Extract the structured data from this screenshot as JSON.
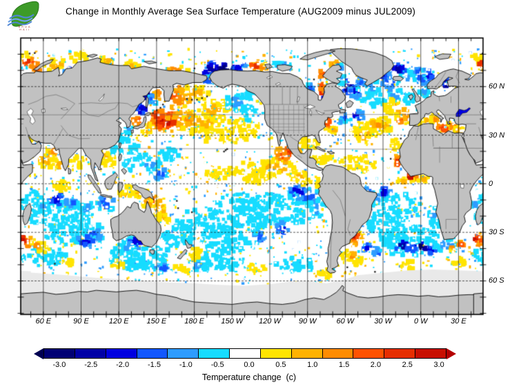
{
  "header": {
    "title": "Change in Monthly Average Sea Surface Temperature (AUG2009 minus JUL2009)",
    "logo_caption_line1": "BRUA",
    "logo_caption_line2": "HAII"
  },
  "axes": {
    "lon_labels": [
      {
        "label": "60 E",
        "lon": 60
      },
      {
        "label": "90 E",
        "lon": 90
      },
      {
        "label": "120 E",
        "lon": 120
      },
      {
        "label": "150 E",
        "lon": 150
      },
      {
        "label": "180 E",
        "lon": 180
      },
      {
        "label": "150 W",
        "lon": 210
      },
      {
        "label": "120 W",
        "lon": 240
      },
      {
        "label": "90 W",
        "lon": 270
      },
      {
        "label": "60 W",
        "lon": 300
      },
      {
        "label": "30 W",
        "lon": 330
      },
      {
        "label": "0 W",
        "lon": 360
      },
      {
        "label": "30 E",
        "lon": 390
      }
    ],
    "lat_labels": [
      {
        "label": "60 N",
        "lat": 60
      },
      {
        "label": "30 N",
        "lat": 30
      },
      {
        "label": "0",
        "lat": 0
      },
      {
        "label": "30 S",
        "lat": -30
      },
      {
        "label": "60 S",
        "lat": -60
      }
    ]
  },
  "colorbar": {
    "title": "Temperature change  (c)",
    "tick_labels": [
      "-3.0",
      "-2.5",
      "-2.0",
      "-1.5",
      "-1.0",
      "-0.5",
      "0.0",
      "0.5",
      "1.0",
      "1.5",
      "2.0",
      "2.5",
      "3.0"
    ],
    "segment_colors": [
      "#000074",
      "#0000a6",
      "#0000e0",
      "#1257ff",
      "#2e9cff",
      "#17dcff",
      "#ffffff",
      "#ffe400",
      "#ffb200",
      "#ff8c00",
      "#ff5200",
      "#e62e00",
      "#c80f00"
    ],
    "left_arrow_color": "#000052",
    "right_arrow_color": "#b40000"
  },
  "map_colors": {
    "land": "#c1c1c1",
    "coast": "#000000",
    "country_border": "#5f5f5f",
    "state_border": "#6f6f6f",
    "ice": "#e9e9e9",
    "ocean": "#ffffff",
    "grid": "#111111",
    "lake": "#ffffff",
    "black_sea_fill": "#0000e0"
  },
  "chart_data": {
    "type": "heatmap",
    "title": "Change in Monthly Average Sea Surface Temperature (AUG2009 minus JUL2009)",
    "units": "c",
    "colorbar_label": "Temperature change  (c)",
    "levels": [
      -3,
      -2.5,
      -2,
      -1.5,
      -1,
      -0.5,
      0,
      0.5,
      1,
      1.5,
      2,
      2.5,
      3
    ],
    "palette": [
      "#000074",
      "#0000a6",
      "#0000e0",
      "#1257ff",
      "#2e9cff",
      "#17dcff",
      "#ffffff",
      "#ffe400",
      "#ffb200",
      "#ff8c00",
      "#ff5200",
      "#e62e00",
      "#c80f00"
    ],
    "lon_range": [
      42,
      409.5
    ],
    "lat_range": [
      -80.7,
      90
    ],
    "grid_step_deg": 30,
    "anomaly_regions": [
      [
        158,
        38,
        16,
        6,
        2
      ],
      [
        157,
        38,
        9,
        4,
        3
      ],
      [
        150,
        42,
        6,
        3,
        2.5
      ],
      [
        172,
        40,
        12,
        6,
        1.5
      ],
      [
        186,
        38,
        18,
        8,
        1
      ],
      [
        205,
        33,
        26,
        9,
        0.5
      ],
      [
        196,
        46,
        14,
        6,
        1
      ],
      [
        170,
        52,
        10,
        5,
        1.5
      ],
      [
        181,
        56,
        12,
        5,
        1
      ],
      [
        167,
        60,
        8,
        4,
        1.5
      ],
      [
        165,
        54,
        5,
        4,
        2
      ],
      [
        152,
        55,
        5,
        4,
        1.5
      ],
      [
        160,
        44,
        8,
        4,
        2
      ],
      [
        143,
        34,
        5,
        4,
        1
      ],
      [
        134,
        39,
        4,
        2.5,
        2
      ],
      [
        215,
        50,
        10,
        6,
        -1
      ],
      [
        221,
        55,
        6,
        4,
        -0.5
      ],
      [
        192,
        71,
        10,
        4,
        -2.5
      ],
      [
        205,
        71,
        8,
        3,
        -3
      ],
      [
        215,
        72,
        6,
        3,
        -2
      ],
      [
        190,
        64,
        4,
        3,
        -1.5
      ],
      [
        142,
        56,
        5,
        4,
        -2.5
      ],
      [
        147,
        52,
        4,
        3,
        -1.5
      ],
      [
        138,
        46,
        4,
        3,
        -2.5
      ],
      [
        125,
        28,
        5,
        4,
        -0.5
      ],
      [
        128,
        33,
        4,
        3,
        -1
      ],
      [
        135,
        20,
        8,
        5,
        -0.5
      ],
      [
        145,
        12,
        10,
        5,
        -1
      ],
      [
        152,
        6,
        8,
        4,
        -1.5
      ],
      [
        160,
        18,
        8,
        4,
        -0.5
      ],
      [
        128,
        12,
        5,
        4,
        -1
      ],
      [
        224,
        44,
        8,
        5,
        -0.5
      ],
      [
        70,
        73,
        10,
        4,
        1
      ],
      [
        55,
        72,
        6,
        3,
        2
      ],
      [
        48,
        75,
        5,
        3,
        2.5
      ],
      [
        45,
        78,
        6,
        3,
        0.5
      ],
      [
        90,
        78,
        8,
        3,
        0.5
      ],
      [
        110,
        76,
        6,
        3,
        1
      ],
      [
        100,
        72,
        5,
        3,
        -1.5
      ],
      [
        80,
        70,
        4,
        3,
        -2
      ],
      [
        130,
        73,
        8,
        3,
        1
      ],
      [
        165,
        70,
        10,
        3,
        1.5
      ],
      [
        232,
        72,
        8,
        3,
        1.5
      ],
      [
        228,
        73,
        4,
        2,
        2.5
      ],
      [
        250,
        73,
        8,
        3,
        -1
      ],
      [
        292,
        74,
        4,
        2,
        1.5
      ],
      [
        296,
        72,
        3,
        2,
        -1.5
      ],
      [
        225,
        8,
        20,
        6,
        0.5
      ],
      [
        245,
        10,
        15,
        6,
        1
      ],
      [
        252,
        18,
        8,
        5,
        2
      ],
      [
        255,
        20,
        4,
        3,
        2.5
      ],
      [
        200,
        6,
        15,
        4,
        0.5
      ],
      [
        263,
        5,
        8,
        3,
        1
      ],
      [
        270,
        1,
        5,
        2,
        1
      ],
      [
        279,
        0,
        3,
        3,
        0.5
      ],
      [
        230,
        2,
        12,
        3,
        0.5
      ],
      [
        270,
        -8,
        12,
        6,
        -1.5
      ],
      [
        262,
        -5,
        8,
        4,
        -2
      ],
      [
        278,
        -15,
        8,
        6,
        -1
      ],
      [
        250,
        -15,
        30,
        10,
        -0.5
      ],
      [
        215,
        -12,
        20,
        7,
        -0.5
      ],
      [
        190,
        -25,
        25,
        10,
        -0.5
      ],
      [
        205,
        -35,
        20,
        8,
        -0.5
      ],
      [
        250,
        -28,
        5,
        4,
        -2
      ],
      [
        232,
        -33,
        6,
        4,
        -1.5
      ],
      [
        160,
        -35,
        8,
        6,
        -0.5
      ],
      [
        180,
        -43,
        6,
        4,
        0.5
      ],
      [
        152,
        -16,
        5,
        4,
        1.5
      ],
      [
        155,
        -22,
        5,
        5,
        1
      ],
      [
        148,
        -10,
        5,
        3,
        2
      ],
      [
        143,
        -12,
        4,
        3,
        1.5
      ],
      [
        135,
        -6,
        8,
        3,
        1
      ],
      [
        128,
        -4,
        6,
        3,
        0.5
      ],
      [
        125,
        -7,
        5,
        3,
        1
      ],
      [
        110,
        -12,
        8,
        5,
        -1.5
      ],
      [
        134,
        -36,
        7,
        4,
        -2
      ],
      [
        128,
        -38,
        8,
        5,
        -1
      ],
      [
        135,
        -45,
        25,
        8,
        -0.5
      ],
      [
        185,
        -50,
        10,
        4,
        -1
      ],
      [
        170,
        -30,
        12,
        8,
        -0.5
      ],
      [
        225,
        -22,
        15,
        8,
        -0.5
      ],
      [
        62,
        15,
        8,
        5,
        1
      ],
      [
        68,
        20,
        5,
        3,
        1.5
      ],
      [
        72,
        12,
        4,
        4,
        1
      ],
      [
        87,
        14,
        6,
        4,
        0.5
      ],
      [
        112,
        14,
        6,
        5,
        0.5
      ],
      [
        108,
        18,
        4,
        3,
        1
      ],
      [
        118,
        20,
        4,
        3,
        -0.5
      ],
      [
        38,
        20,
        3,
        6,
        1.5
      ],
      [
        53,
        28,
        4,
        2,
        1
      ],
      [
        75,
        -2,
        10,
        4,
        0.5
      ],
      [
        55,
        -8,
        8,
        4,
        -0.5
      ],
      [
        75,
        -18,
        25,
        9,
        -0.5
      ],
      [
        72,
        -10,
        8,
        4,
        -2
      ],
      [
        82,
        -12,
        6,
        3,
        -1.5
      ],
      [
        60,
        -14,
        6,
        4,
        -1
      ],
      [
        95,
        -16,
        8,
        5,
        -1
      ],
      [
        85,
        -30,
        25,
        8,
        -0.5
      ],
      [
        94,
        -35,
        7,
        4,
        -2
      ],
      [
        48,
        -36,
        4,
        3,
        2
      ],
      [
        44,
        -34,
        3,
        2,
        3
      ],
      [
        54,
        -38,
        4,
        2.5,
        1.5
      ],
      [
        60,
        -40,
        5,
        3,
        0.5
      ],
      [
        50,
        -20,
        6,
        5,
        -0.5
      ],
      [
        43,
        -12,
        4,
        3,
        -1
      ],
      [
        100,
        -32,
        8,
        5,
        -1.5
      ],
      [
        283,
        58,
        4,
        4,
        3
      ],
      [
        281,
        60,
        4,
        3,
        2
      ],
      [
        286,
        56,
        3,
        4,
        2.5
      ],
      [
        272,
        58,
        4,
        4,
        -1.5
      ],
      [
        285,
        53,
        3,
        3,
        -2.5
      ],
      [
        303,
        60,
        6,
        4,
        -2.5
      ],
      [
        308,
        57,
        5,
        4,
        -2
      ],
      [
        312,
        62,
        5,
        4,
        -1.5
      ],
      [
        297,
        64,
        5,
        3,
        -1
      ],
      [
        282,
        68,
        6,
        3,
        2
      ],
      [
        290,
        70,
        3,
        2,
        2.5
      ],
      [
        335,
        62,
        8,
        5,
        -1.5
      ],
      [
        330,
        68,
        6,
        5,
        -2
      ],
      [
        322,
        60,
        6,
        4,
        -1
      ],
      [
        350,
        66,
        6,
        4,
        -1
      ],
      [
        342,
        70,
        6,
        4,
        -2.5
      ],
      [
        358,
        68,
        6,
        5,
        -1.5
      ],
      [
        5,
        66,
        6,
        5,
        -2
      ],
      [
        20,
        62,
        3,
        4,
        -2.5
      ],
      [
        3,
        57,
        4,
        4,
        -1
      ],
      [
        350,
        52,
        6,
        5,
        -0.5
      ],
      [
        340,
        55,
        6,
        4,
        -1
      ],
      [
        315,
        55,
        8,
        4,
        -1
      ],
      [
        325,
        52,
        8,
        5,
        -0.5
      ],
      [
        338,
        50,
        5,
        3,
        0.5
      ],
      [
        308,
        42,
        7,
        3,
        -2
      ],
      [
        300,
        41,
        5,
        3,
        -1.5
      ],
      [
        296,
        38,
        4,
        2,
        -1
      ],
      [
        288,
        36,
        5,
        4,
        1.5
      ],
      [
        292,
        33,
        5,
        3,
        1
      ],
      [
        286,
        38,
        2,
        2,
        2.5
      ],
      [
        320,
        34,
        18,
        6,
        0.5
      ],
      [
        330,
        36,
        10,
        5,
        1
      ],
      [
        315,
        30,
        10,
        5,
        1
      ],
      [
        325,
        37,
        6,
        3,
        1.5
      ],
      [
        347,
        42,
        7,
        5,
        1.5
      ],
      [
        344,
        40,
        4,
        3,
        2
      ],
      [
        342,
        24,
        6,
        4,
        0.5
      ],
      [
        343,
        13,
        3,
        2.5,
        2.5
      ],
      [
        341,
        15,
        4,
        3,
        1.5
      ],
      [
        310,
        12,
        15,
        5,
        0.5
      ],
      [
        285,
        15,
        10,
        4,
        0.5
      ],
      [
        272,
        25,
        8,
        4,
        0.5
      ],
      [
        262,
        20,
        3,
        2,
        1.5
      ],
      [
        355,
        4,
        10,
        2,
        1.5
      ],
      [
        346,
        2,
        6,
        2,
        1
      ],
      [
        2,
        3,
        5,
        2,
        1
      ],
      [
        352,
        4.5,
        3,
        1.5,
        3
      ],
      [
        334,
        46,
        5,
        3,
        0.5
      ],
      [
        5,
        39,
        6,
        3,
        1
      ],
      [
        12,
        40,
        5,
        3,
        1.5
      ],
      [
        18,
        35,
        6,
        3,
        2
      ],
      [
        25,
        35,
        5,
        3,
        1.5
      ],
      [
        30,
        33,
        4,
        2,
        1
      ],
      [
        19,
        34,
        2,
        1.5,
        2.5
      ],
      [
        0,
        37,
        4,
        2,
        0.5
      ],
      [
        340,
        -15,
        20,
        10,
        -0.5
      ],
      [
        325,
        -8,
        10,
        5,
        -1
      ],
      [
        330,
        -5,
        6,
        3,
        -2
      ],
      [
        318,
        -5,
        5,
        3,
        -1.5
      ],
      [
        10,
        -20,
        5,
        6,
        -1
      ],
      [
        13,
        -25,
        4,
        5,
        -0.5
      ],
      [
        322,
        -25,
        6,
        5,
        -0.5
      ],
      [
        305,
        -33,
        4,
        4,
        2
      ],
      [
        308,
        -31,
        3,
        3,
        3
      ],
      [
        307,
        -36,
        5,
        3,
        1.5
      ],
      [
        312,
        -33,
        4,
        3,
        1
      ],
      [
        345,
        -38,
        6,
        3,
        -2.5
      ],
      [
        352,
        -40,
        5,
        3,
        -2
      ],
      [
        0,
        -39,
        6,
        3,
        -3
      ],
      [
        8,
        -41,
        5,
        3,
        -2
      ],
      [
        318,
        -40,
        5,
        3,
        -2
      ],
      [
        325,
        -42,
        4,
        3,
        -1.5
      ],
      [
        350,
        -35,
        25,
        10,
        -0.5
      ],
      [
        20,
        -38,
        12,
        6,
        -1
      ],
      [
        25,
        -40,
        3,
        2,
        1.5
      ],
      [
        32,
        -38,
        3,
        2,
        2
      ],
      [
        302,
        -45,
        6,
        4,
        0.5
      ],
      [
        310,
        -48,
        5,
        3,
        0.5
      ],
      [
        306,
        -44,
        2.5,
        2,
        1.5
      ],
      [
        335,
        -30,
        10,
        6,
        -0.5
      ],
      [
        80,
        -48,
        6,
        3,
        0.5
      ],
      [
        120,
        -50,
        6,
        3,
        0.5
      ],
      [
        170,
        -52,
        6,
        3,
        0.5
      ],
      [
        230,
        -52,
        8,
        3,
        0.5
      ],
      [
        285,
        -55,
        6,
        3,
        0.5
      ],
      [
        350,
        -50,
        6,
        3,
        0.5
      ],
      [
        30,
        -48,
        5,
        3,
        0.5
      ],
      [
        60,
        -45,
        20,
        6,
        -0.5
      ],
      [
        140,
        -48,
        20,
        6,
        -0.5
      ],
      [
        200,
        -48,
        20,
        6,
        -0.5
      ],
      [
        260,
        -50,
        15,
        5,
        -0.5
      ],
      [
        155,
        -52,
        8,
        3,
        -1.5
      ]
    ]
  }
}
